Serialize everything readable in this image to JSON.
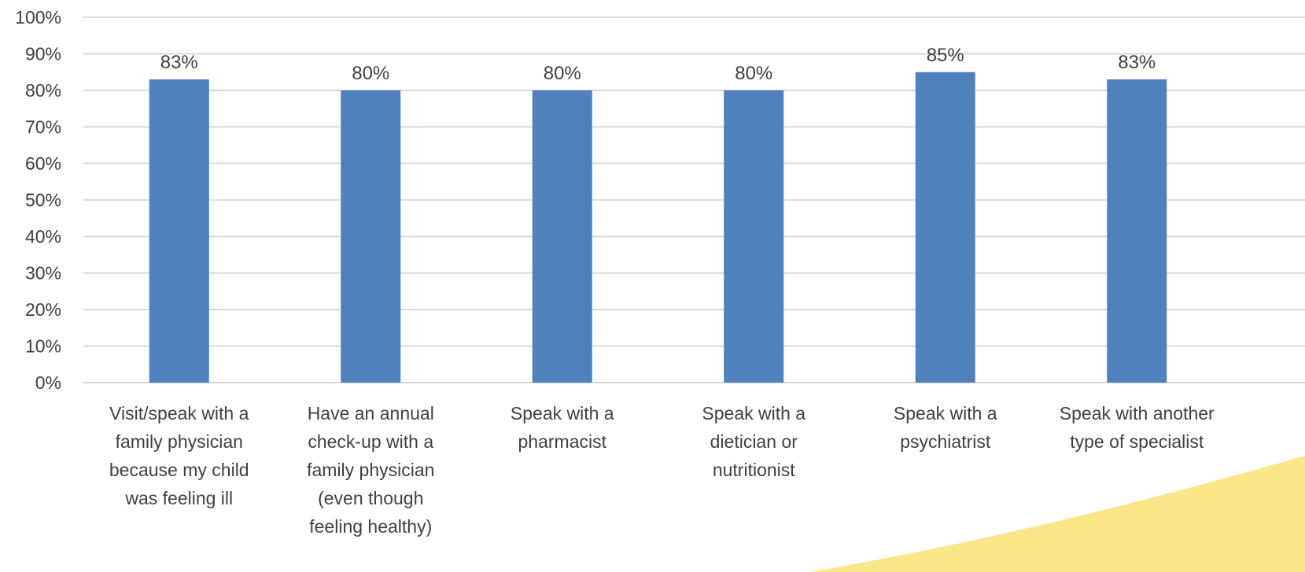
{
  "chart_data": {
    "type": "bar",
    "categories": [
      [
        "Visit/speak with a",
        "family physician",
        "because my child",
        "was feeling ill"
      ],
      [
        "Have an annual",
        "check-up with a",
        "family physician",
        "(even though",
        "feeling healthy)"
      ],
      [
        "Speak with a",
        "pharmacist"
      ],
      [
        "Speak with a",
        "dietician or",
        "nutritionist"
      ],
      [
        "Speak with a",
        "psychiatrist"
      ],
      [
        "Speak with another",
        "type of specialist"
      ]
    ],
    "values": [
      83,
      80,
      80,
      80,
      85,
      83
    ],
    "value_labels": [
      "83%",
      "80%",
      "80%",
      "80%",
      "85%",
      "83%"
    ],
    "y_ticks": [
      0,
      10,
      20,
      30,
      40,
      50,
      60,
      70,
      80,
      90,
      100
    ],
    "y_tick_labels": [
      "0%",
      "10%",
      "20%",
      "30%",
      "40%",
      "50%",
      "60%",
      "70%",
      "80%",
      "90%",
      "100%"
    ],
    "ylim": [
      0,
      100
    ],
    "grid": true,
    "title": "",
    "xlabel": "",
    "ylabel": "",
    "colors": {
      "bar": "#4F81BD",
      "grid": "#D9D9D9",
      "text": "#404040",
      "accent_shape": "#FCE68A"
    }
  }
}
